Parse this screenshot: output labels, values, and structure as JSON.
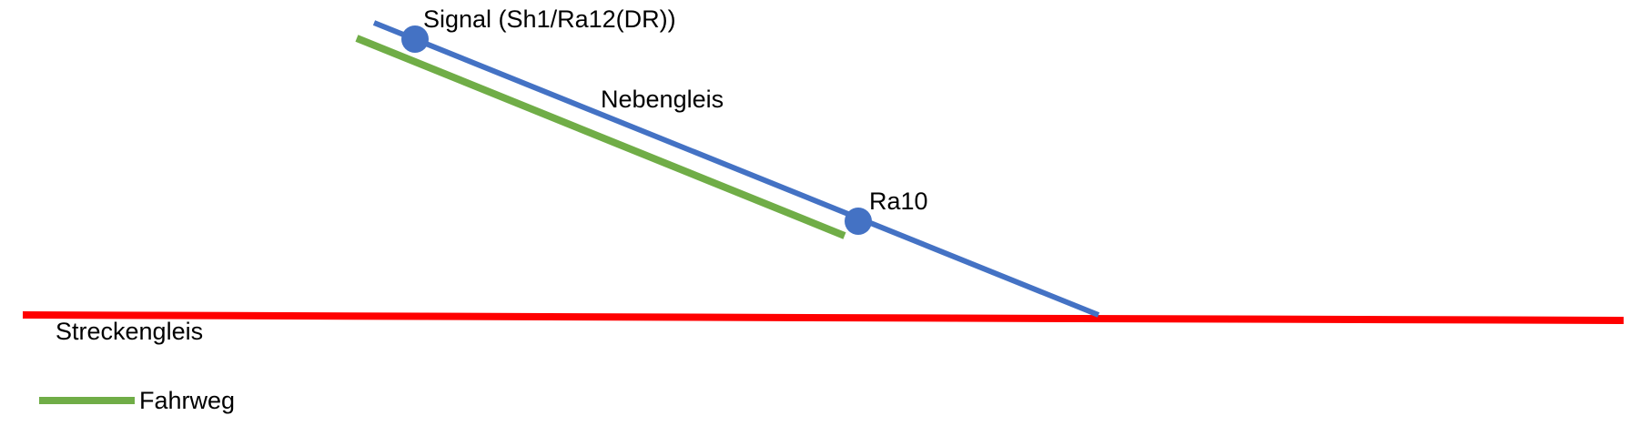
{
  "labels": {
    "signal": "Signal (Sh1/Ra12(DR))",
    "side_track": "Nebengleis",
    "ra10": "Ra10",
    "main_track": "Streckengleis"
  },
  "legend": {
    "route": "Fahrweg"
  }
}
